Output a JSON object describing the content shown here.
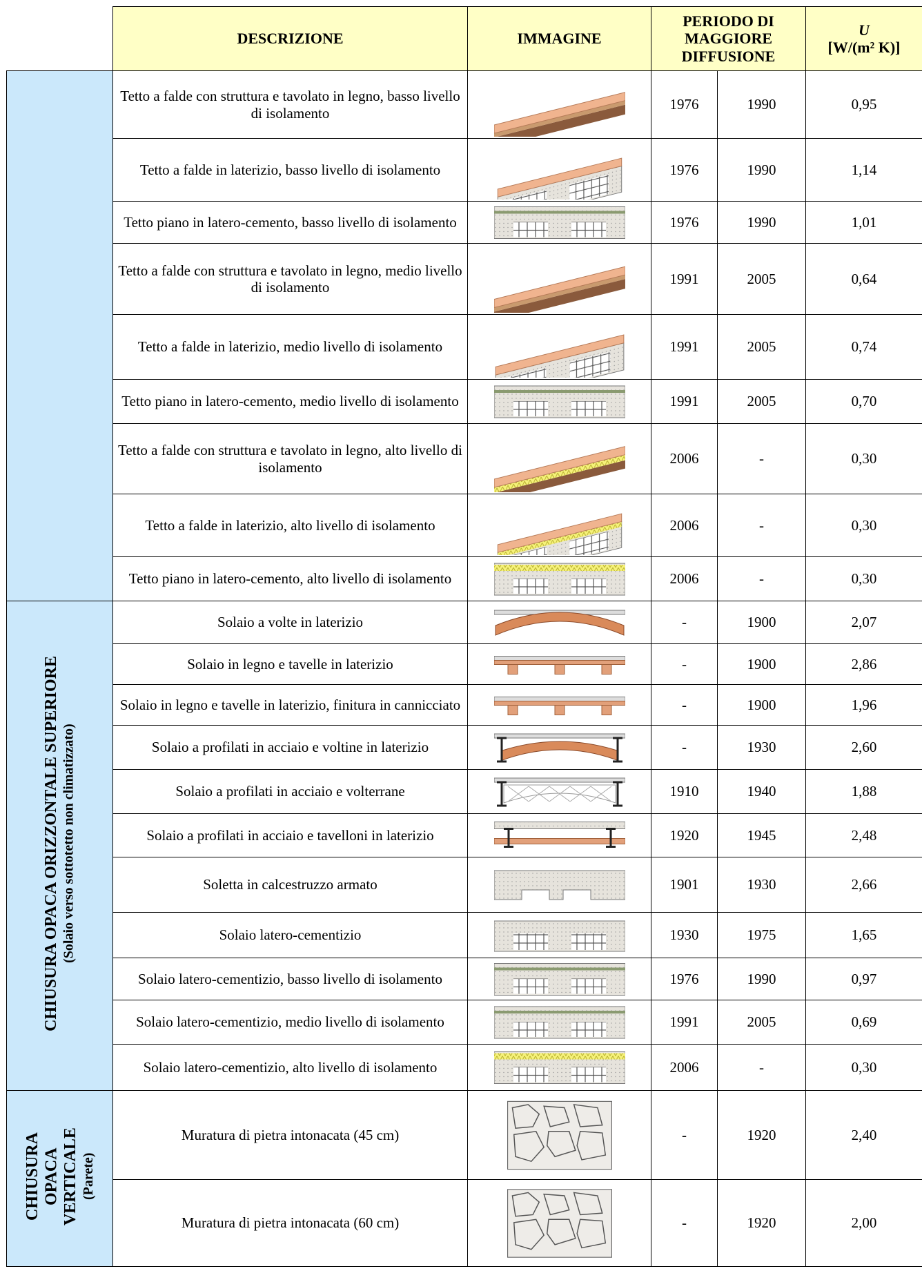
{
  "header": {
    "descrizione": "DESCRIZIONE",
    "immagine": "IMMAGINE",
    "periodo": "PERIODO DI MAGGIORE DIFFUSIONE",
    "u_symbol": "U",
    "u_unit": "[W/(m² K)]"
  },
  "groups": [
    {
      "rows": [
        {
          "descrizione": "Tetto a falde con struttura e tavolato in legno, basso livello di isolamento",
          "da": "1976",
          "a": "1990",
          "u": "0,95"
        },
        {
          "descrizione": "Tetto a falde in laterizio, basso livello di isolamento",
          "da": "1976",
          "a": "1990",
          "u": "1,14"
        },
        {
          "descrizione": "Tetto piano in latero-cemento, basso livello di isolamento",
          "da": "1976",
          "a": "1990",
          "u": "1,01"
        },
        {
          "descrizione": "Tetto a falde con struttura e tavolato in legno, medio livello di isolamento",
          "da": "1991",
          "a": "2005",
          "u": "0,64"
        },
        {
          "descrizione": "Tetto a falde in laterizio, medio livello di isolamento",
          "da": "1991",
          "a": "2005",
          "u": "0,74"
        },
        {
          "descrizione": "Tetto piano in latero-cemento, medio livello di isolamento",
          "da": "1991",
          "a": "2005",
          "u": "0,70"
        },
        {
          "descrizione": "Tetto a falde con struttura e tavolato in legno, alto livello di isolamento",
          "da": "2006",
          "a": "-",
          "u": "0,30"
        },
        {
          "descrizione": "Tetto a falde in laterizio, alto livello di isolamento",
          "da": "2006",
          "a": "-",
          "u": "0,30"
        },
        {
          "descrizione": "Tetto piano in latero-cemento, alto livello di isolamento",
          "da": "2006",
          "a": "-",
          "u": "0,30"
        }
      ]
    },
    {
      "title": "CHIUSURA OPACA ORIZZONTALE SUPERIORE",
      "subtitle": "(Solaio verso sottotetto non climatizzato)",
      "rows": [
        {
          "descrizione": "Solaio a volte in laterizio",
          "da": "-",
          "a": "1900",
          "u": "2,07"
        },
        {
          "descrizione": "Solaio in legno e tavelle in laterizio",
          "da": "-",
          "a": "1900",
          "u": "2,86"
        },
        {
          "descrizione": "Solaio in legno e tavelle in laterizio, finitura in cannicciato",
          "da": "-",
          "a": "1900",
          "u": "1,96"
        },
        {
          "descrizione": "Solaio a profilati in acciaio e voltine in laterizio",
          "da": "-",
          "a": "1930",
          "u": "2,60"
        },
        {
          "descrizione": "Solaio a profilati in acciaio e volterrane",
          "da": "1910",
          "a": "1940",
          "u": "1,88"
        },
        {
          "descrizione": "Solaio a profilati in acciaio e tavelloni in laterizio",
          "da": "1920",
          "a": "1945",
          "u": "2,48"
        },
        {
          "descrizione": "Soletta in calcestruzzo armato",
          "da": "1901",
          "a": "1930",
          "u": "2,66"
        },
        {
          "descrizione": "Solaio latero-cementizio",
          "da": "1930",
          "a": "1975",
          "u": "1,65"
        },
        {
          "descrizione": "Solaio latero-cementizio, basso livello di isolamento",
          "da": "1976",
          "a": "1990",
          "u": "0,97"
        },
        {
          "descrizione": "Solaio latero-cementizio, medio livello di isolamento",
          "da": "1991",
          "a": "2005",
          "u": "0,69"
        },
        {
          "descrizione": "Solaio latero-cementizio, alto livello di isolamento",
          "da": "2006",
          "a": "-",
          "u": "0,30"
        }
      ]
    },
    {
      "title": "CHIUSURA OPACA VERTICALE",
      "subtitle": "(Parete)",
      "rows": [
        {
          "descrizione": "Muratura di pietra intonacata (45 cm)",
          "da": "-",
          "a": "1920",
          "u": "2,40"
        },
        {
          "descrizione": "Muratura di pietra intonacata (60 cm)",
          "da": "-",
          "a": "1920",
          "u": "2,00"
        }
      ]
    }
  ]
}
